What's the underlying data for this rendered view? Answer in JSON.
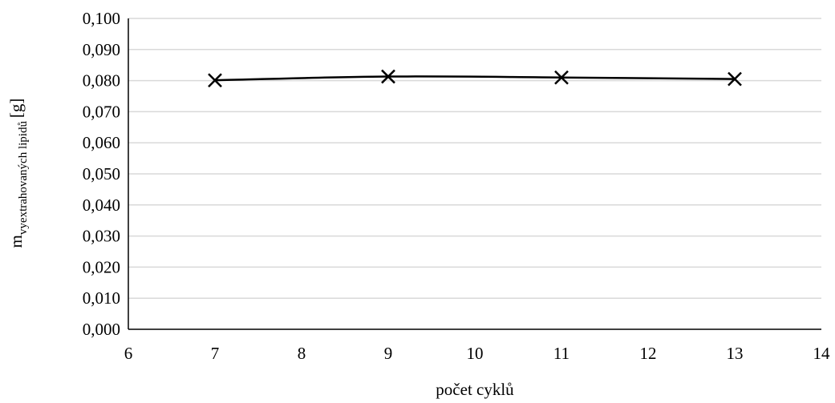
{
  "chart_data": {
    "type": "line",
    "title": "",
    "xlabel": "počet cyklů",
    "ylabel": {
      "main": "m",
      "subscript": "vyextrahovaných lipidů",
      "unit": "[g]"
    },
    "xlim": [
      6,
      14
    ],
    "ylim": [
      0,
      0.1
    ],
    "x_ticks": [
      "6",
      "7",
      "8",
      "9",
      "10",
      "11",
      "12",
      "13",
      "14"
    ],
    "y_ticks": [
      "0,000",
      "0,010",
      "0,020",
      "0,030",
      "0,040",
      "0,050",
      "0,060",
      "0,070",
      "0,080",
      "0,090",
      "0,100"
    ],
    "grid": "horizontal",
    "series": [
      {
        "x": [
          7,
          9,
          11,
          13
        ],
        "y": [
          0.0801,
          0.0813,
          0.081,
          0.0805
        ],
        "marker": "x",
        "color": "#000000",
        "smooth": true
      }
    ]
  }
}
